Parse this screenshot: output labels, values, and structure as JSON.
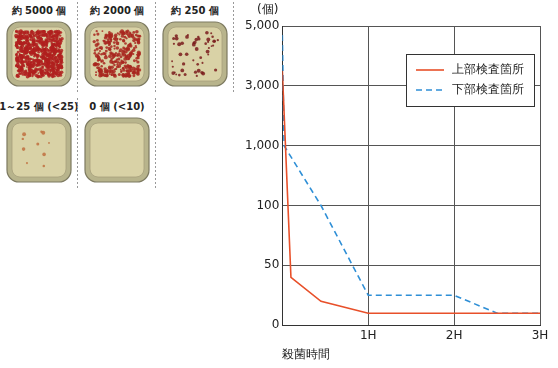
{
  "chart_data": {
    "type": "line",
    "y_label": "(個)",
    "x_label": "殺菌時間",
    "xlim": [
      0,
      3
    ],
    "xticks": [
      {
        "value": 1,
        "label": "1H"
      },
      {
        "value": 2,
        "label": "2H"
      },
      {
        "value": 3,
        "label": "3H"
      }
    ],
    "ylim": [
      0,
      5000
    ],
    "yticks": [
      0,
      50,
      100,
      {
        "value": 1000,
        "label": "1,000"
      },
      {
        "value": 3000,
        "label": "3,000"
      },
      {
        "value": 5000,
        "label": "5,000"
      }
    ],
    "grid": true,
    "legend": "upper right",
    "series": [
      {
        "name": "上部検査箇所",
        "color": "#e8502a",
        "line_style": "solid",
        "x": [
          0,
          0.1,
          0.45,
          1,
          3
        ],
        "values": [
          3500,
          40,
          20,
          10,
          10
        ]
      },
      {
        "name": "下部検査箇所",
        "color": "#2f8fd6",
        "line_style": "dashed",
        "x": [
          0,
          0.02,
          0.45,
          1,
          2,
          2.5,
          3
        ],
        "values": [
          4700,
          1000,
          100,
          25,
          25,
          10,
          10
        ]
      }
    ]
  },
  "dish_labels": [
    "約 5000 個",
    "約 2000 個",
    "約 250 個",
    "1～25 個 (<25)",
    "0 個 (<10)"
  ]
}
